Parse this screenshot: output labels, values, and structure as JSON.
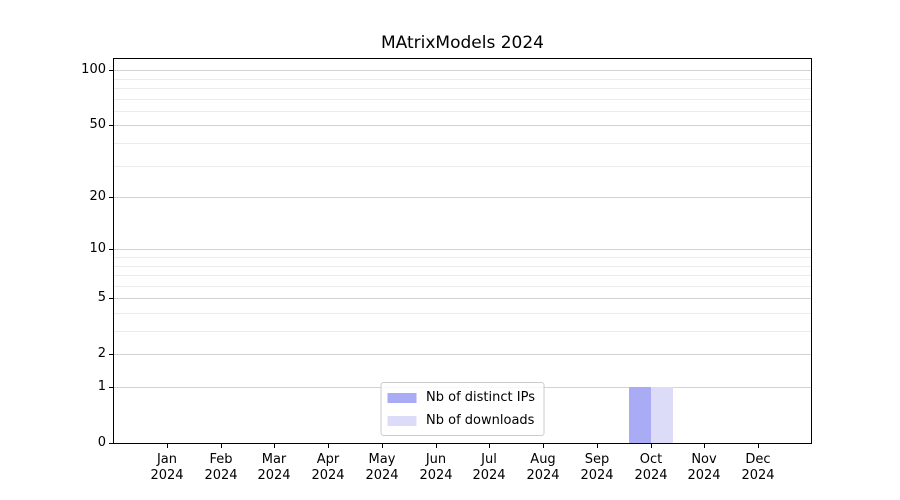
{
  "chart_data": {
    "type": "bar",
    "title": "MAtrixModels 2024",
    "categories": [
      "Jan",
      "Feb",
      "Mar",
      "Apr",
      "May",
      "Jun",
      "Jul",
      "Aug",
      "Sep",
      "Oct",
      "Nov",
      "Dec"
    ],
    "x_year_label": "2024",
    "series": [
      {
        "name": "Nb of distinct IPs",
        "color": "#aaabf5",
        "values": [
          0,
          0,
          0,
          0,
          0,
          0,
          0,
          0,
          0,
          1,
          0,
          0
        ]
      },
      {
        "name": "Nb of downloads",
        "color": "#dcdcf8",
        "values": [
          0,
          0,
          0,
          0,
          0,
          0,
          0,
          0,
          0,
          1,
          0,
          0
        ]
      }
    ],
    "yscale": "log1p",
    "ylim": [
      0,
      115
    ],
    "yticks": [
      0,
      1,
      2,
      5,
      10,
      20,
      50,
      100
    ],
    "minor_gridlines": [
      3,
      4,
      6,
      7,
      8,
      9,
      30,
      40,
      60,
      70,
      80,
      90
    ],
    "grid": "horizontal",
    "legend_position": "lower center inside"
  },
  "style": {
    "major_grid_color": "#d2d2d2",
    "minor_grid_color": "#ebebeb",
    "spine_color": "#000000",
    "legend_border_color": "#cccccc",
    "background": "#ffffff"
  }
}
